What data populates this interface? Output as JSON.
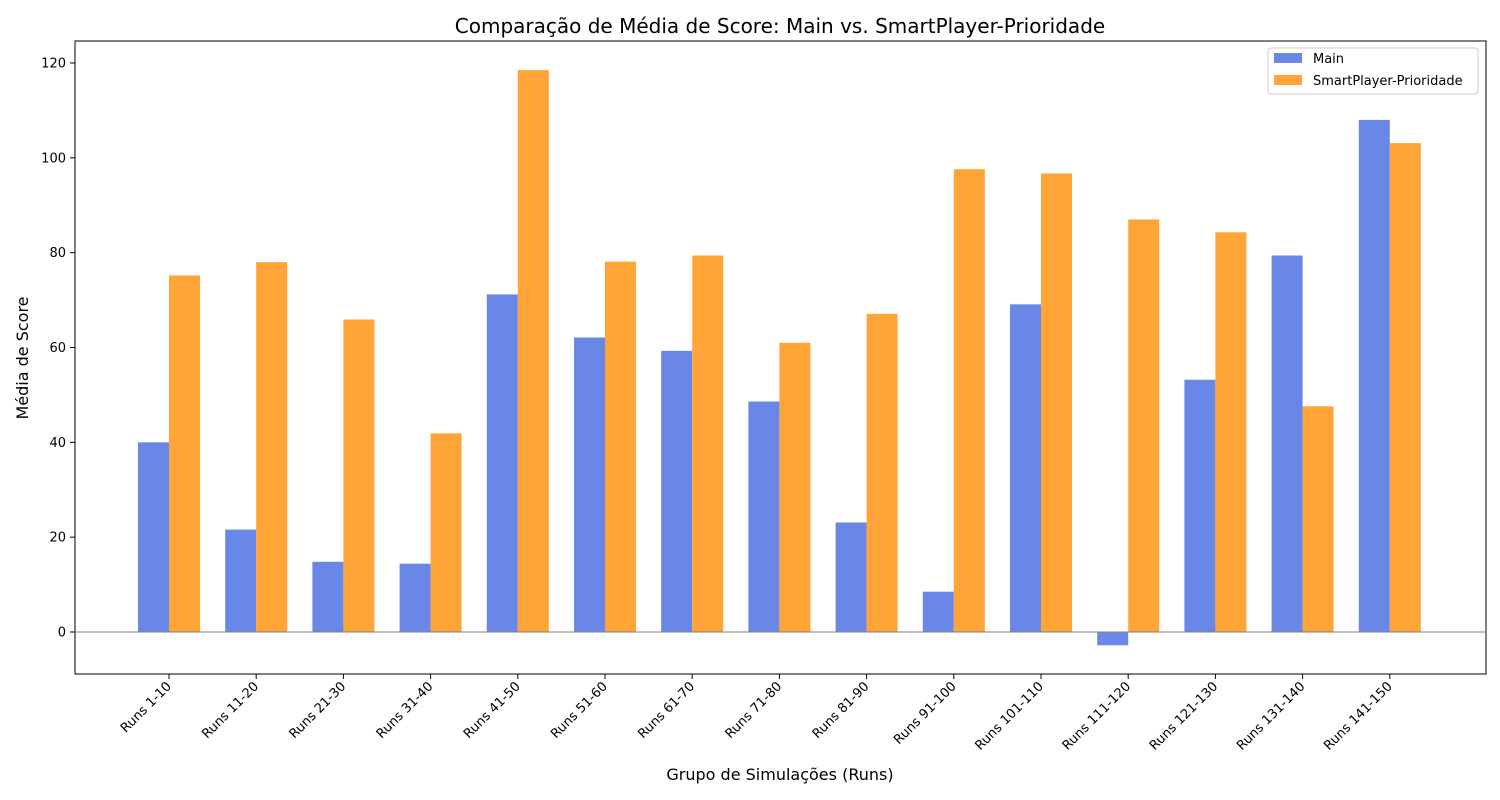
{
  "chart_data": {
    "type": "bar",
    "title": "Comparação de Média de Score: Main vs. SmartPlayer-Prioridade",
    "xlabel": "Grupo de Simulações (Runs)",
    "ylabel": "Média de Score",
    "ylim": [
      -9,
      124
    ],
    "yticks": [
      0,
      20,
      40,
      60,
      80,
      100,
      120
    ],
    "grid": false,
    "zero_line": true,
    "legend_position": "top-right",
    "categories": [
      "Runs 1-10",
      "Runs 11-20",
      "Runs 21-30",
      "Runs 31-40",
      "Runs 41-50",
      "Runs 51-60",
      "Runs 61-70",
      "Runs 71-80",
      "Runs 81-90",
      "Runs 91-100",
      "Runs 101-110",
      "Runs 111-120",
      "Runs 121-130",
      "Runs 131-140",
      "Runs 141-150"
    ],
    "series": [
      {
        "name": "Main",
        "color": "#6887e6",
        "values": [
          40.0,
          21.6,
          14.8,
          14.4,
          71.2,
          62.1,
          59.3,
          48.6,
          23.1,
          8.5,
          69.1,
          -2.8,
          53.2,
          79.4,
          108.0
        ]
      },
      {
        "name": "SmartPlayer-Prioridade",
        "color": "#ffa436",
        "values": [
          75.2,
          78.0,
          65.9,
          41.9,
          118.5,
          78.1,
          79.4,
          61.0,
          67.1,
          97.6,
          96.7,
          87.0,
          84.3,
          47.6,
          103.1
        ]
      }
    ]
  }
}
